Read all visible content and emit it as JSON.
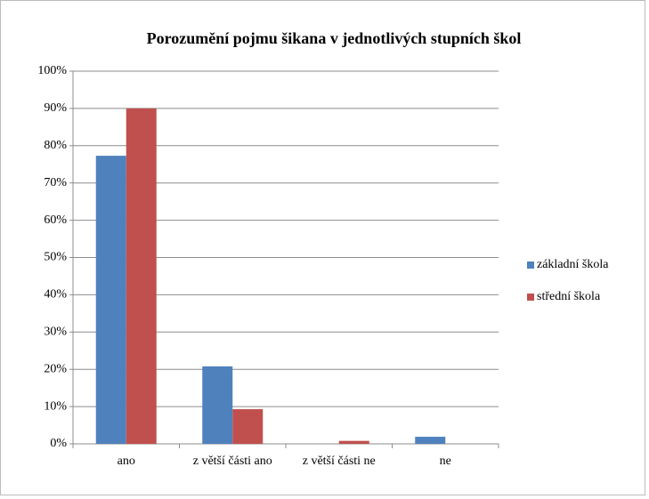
{
  "chart_data": {
    "type": "bar",
    "title": "Porozumění pojmu šikana v jednotlivých stupních škol",
    "categories": [
      "ano",
      "z větší části ano",
      "z větší části ne",
      "ne"
    ],
    "series": [
      {
        "name": "základní škola",
        "color": "#4f81bd",
        "values": [
          77.3,
          20.8,
          0,
          1.9
        ]
      },
      {
        "name": "střední škola",
        "color": "#c0504d",
        "values": [
          90,
          9.3,
          0.8,
          0
        ]
      }
    ],
    "ylim": [
      0,
      100
    ],
    "yticks": [
      {
        "value": 0,
        "label": "0%"
      },
      {
        "value": 10,
        "label": "10%"
      },
      {
        "value": 20,
        "label": "20%"
      },
      {
        "value": 30,
        "label": "30%"
      },
      {
        "value": 40,
        "label": "40%"
      },
      {
        "value": 50,
        "label": "50%"
      },
      {
        "value": 60,
        "label": "60%"
      },
      {
        "value": 70,
        "label": "70%"
      },
      {
        "value": 80,
        "label": "80%"
      },
      {
        "value": 90,
        "label": "90%"
      },
      {
        "value": 100,
        "label": "100%"
      }
    ],
    "grid": true,
    "legend": "right"
  }
}
